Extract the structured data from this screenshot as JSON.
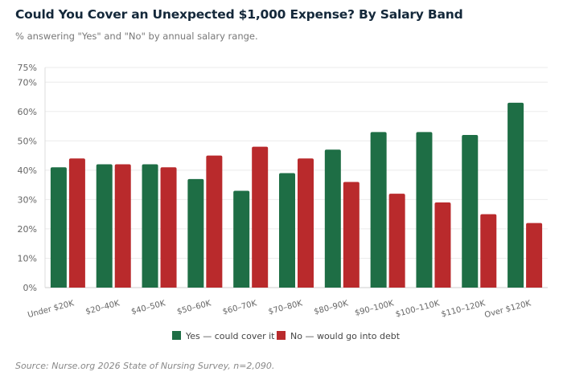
{
  "chart_data": {
    "type": "bar",
    "title": "Could You Cover an Unexpected $1,000 Expense? By Salary Band",
    "subtitle": "% answering \"Yes\" and \"No\" by annual salary range.",
    "source": "Source: Nurse.org 2026 State of Nursing Survey, n=2,090.",
    "xlabel": "",
    "ylabel": "",
    "ylim": [
      0,
      75
    ],
    "yticks": [
      "0%",
      "10%",
      "20%",
      "30%",
      "40%",
      "50%",
      "60%",
      "70%",
      "75%"
    ],
    "ytick_values": [
      0,
      10,
      20,
      30,
      40,
      50,
      60,
      70,
      75
    ],
    "categories": [
      "Under $20K",
      "$20–40K",
      "$40–50K",
      "$50–60K",
      "$60–70K",
      "$70–80K",
      "$80–90K",
      "$90–100K",
      "$100–110K",
      "$110–120K",
      "Over $120K"
    ],
    "series": [
      {
        "name": "Yes — could cover it",
        "color": "#1e6e45",
        "values": [
          41,
          42,
          42,
          37,
          33,
          39,
          47,
          53,
          53,
          52,
          63
        ]
      },
      {
        "name": "No — would go into debt",
        "color": "#b92a2c",
        "values": [
          44,
          42,
          41,
          45,
          48,
          44,
          36,
          32,
          29,
          25,
          22
        ]
      }
    ],
    "grid": true,
    "legend_position": "bottom"
  }
}
